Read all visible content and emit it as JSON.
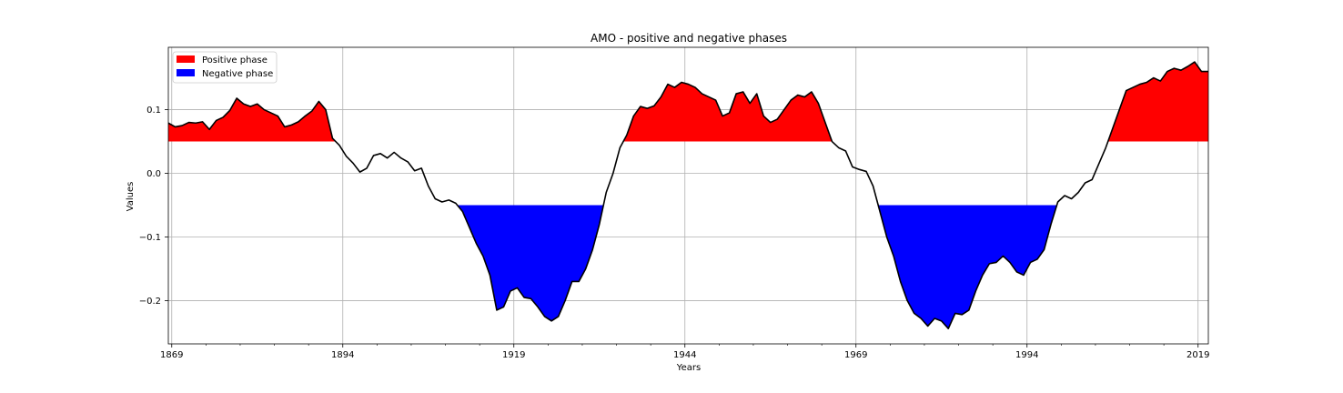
{
  "chart_data": {
    "type": "area",
    "title": "AMO - positive and negative phases",
    "xlabel": "Years",
    "ylabel": "Values",
    "xlim": [
      1868.5,
      2020.5
    ],
    "ylim": [
      -0.268,
      0.198
    ],
    "xticks": [
      1869,
      1894,
      1919,
      1944,
      1969,
      1994,
      2019
    ],
    "yticks": [
      -0.2,
      -0.1,
      0.0,
      0.1
    ],
    "ytick_labels": [
      "−0.2",
      "−0.1",
      "0.0",
      "0.1"
    ],
    "grid": true,
    "legend_position": "top-left",
    "positive_threshold": 0.05,
    "negative_threshold": -0.05,
    "series": [
      {
        "name": "Positive phase",
        "color": "#ff0000"
      },
      {
        "name": "Negative phase",
        "color": "#0000ff"
      }
    ],
    "line_color": "#000000",
    "points": [
      [
        1868.5,
        0.079
      ],
      [
        1869.5,
        0.073
      ],
      [
        1870.5,
        0.075
      ],
      [
        1871.5,
        0.08
      ],
      [
        1872.5,
        0.079
      ],
      [
        1873.5,
        0.081
      ],
      [
        1874.5,
        0.069
      ],
      [
        1875.5,
        0.083
      ],
      [
        1876.5,
        0.088
      ],
      [
        1877.5,
        0.099
      ],
      [
        1878.5,
        0.118
      ],
      [
        1879.5,
        0.109
      ],
      [
        1880.5,
        0.105
      ],
      [
        1881.5,
        0.109
      ],
      [
        1882.5,
        0.1
      ],
      [
        1883.5,
        0.095
      ],
      [
        1884.5,
        0.09
      ],
      [
        1885.5,
        0.073
      ],
      [
        1886.5,
        0.076
      ],
      [
        1887.5,
        0.081
      ],
      [
        1888.5,
        0.09
      ],
      [
        1889.5,
        0.098
      ],
      [
        1890.5,
        0.113
      ],
      [
        1891.5,
        0.1
      ],
      [
        1892.5,
        0.055
      ],
      [
        1893.5,
        0.044
      ],
      [
        1894.5,
        0.027
      ],
      [
        1895.5,
        0.016
      ],
      [
        1896.5,
        0.002
      ],
      [
        1897.5,
        0.008
      ],
      [
        1898.5,
        0.028
      ],
      [
        1899.5,
        0.031
      ],
      [
        1900.5,
        0.024
      ],
      [
        1901.5,
        0.033
      ],
      [
        1902.5,
        0.024
      ],
      [
        1903.5,
        0.018
      ],
      [
        1904.5,
        0.004
      ],
      [
        1905.5,
        0.008
      ],
      [
        1906.5,
        -0.02
      ],
      [
        1907.5,
        -0.04
      ],
      [
        1908.5,
        -0.045
      ],
      [
        1909.5,
        -0.042
      ],
      [
        1910.5,
        -0.047
      ],
      [
        1911.5,
        -0.06
      ],
      [
        1912.5,
        -0.085
      ],
      [
        1913.5,
        -0.11
      ],
      [
        1914.5,
        -0.13
      ],
      [
        1915.5,
        -0.16
      ],
      [
        1916.5,
        -0.215
      ],
      [
        1917.5,
        -0.21
      ],
      [
        1918.5,
        -0.185
      ],
      [
        1919.5,
        -0.18
      ],
      [
        1920.5,
        -0.195
      ],
      [
        1921.5,
        -0.197
      ],
      [
        1922.5,
        -0.21
      ],
      [
        1923.5,
        -0.225
      ],
      [
        1924.5,
        -0.232
      ],
      [
        1925.5,
        -0.225
      ],
      [
        1926.5,
        -0.2
      ],
      [
        1927.5,
        -0.17
      ],
      [
        1928.5,
        -0.17
      ],
      [
        1929.5,
        -0.15
      ],
      [
        1930.5,
        -0.12
      ],
      [
        1931.5,
        -0.08
      ],
      [
        1932.5,
        -0.03
      ],
      [
        1933.5,
        0.0
      ],
      [
        1934.5,
        0.04
      ],
      [
        1935.5,
        0.06
      ],
      [
        1936.5,
        0.09
      ],
      [
        1937.5,
        0.105
      ],
      [
        1938.5,
        0.102
      ],
      [
        1939.5,
        0.106
      ],
      [
        1940.5,
        0.12
      ],
      [
        1941.5,
        0.14
      ],
      [
        1942.5,
        0.135
      ],
      [
        1943.5,
        0.143
      ],
      [
        1944.5,
        0.14
      ],
      [
        1945.5,
        0.135
      ],
      [
        1946.5,
        0.125
      ],
      [
        1947.5,
        0.12
      ],
      [
        1948.5,
        0.115
      ],
      [
        1949.5,
        0.09
      ],
      [
        1950.5,
        0.095
      ],
      [
        1951.5,
        0.125
      ],
      [
        1952.5,
        0.128
      ],
      [
        1953.5,
        0.11
      ],
      [
        1954.5,
        0.125
      ],
      [
        1955.5,
        0.09
      ],
      [
        1956.5,
        0.08
      ],
      [
        1957.5,
        0.085
      ],
      [
        1958.5,
        0.1
      ],
      [
        1959.5,
        0.115
      ],
      [
        1960.5,
        0.123
      ],
      [
        1961.5,
        0.12
      ],
      [
        1962.5,
        0.128
      ],
      [
        1963.5,
        0.11
      ],
      [
        1964.5,
        0.08
      ],
      [
        1965.5,
        0.05
      ],
      [
        1966.5,
        0.04
      ],
      [
        1967.5,
        0.035
      ],
      [
        1968.5,
        0.01
      ],
      [
        1969.5,
        0.006
      ],
      [
        1970.5,
        0.003
      ],
      [
        1971.5,
        -0.02
      ],
      [
        1972.5,
        -0.06
      ],
      [
        1973.5,
        -0.1
      ],
      [
        1974.5,
        -0.13
      ],
      [
        1975.5,
        -0.17
      ],
      [
        1976.5,
        -0.2
      ],
      [
        1977.5,
        -0.22
      ],
      [
        1978.5,
        -0.228
      ],
      [
        1979.5,
        -0.24
      ],
      [
        1980.5,
        -0.228
      ],
      [
        1981.5,
        -0.232
      ],
      [
        1982.5,
        -0.244
      ],
      [
        1983.5,
        -0.22
      ],
      [
        1984.5,
        -0.222
      ],
      [
        1985.5,
        -0.215
      ],
      [
        1986.5,
        -0.185
      ],
      [
        1987.5,
        -0.16
      ],
      [
        1988.5,
        -0.142
      ],
      [
        1989.5,
        -0.14
      ],
      [
        1990.5,
        -0.13
      ],
      [
        1991.5,
        -0.14
      ],
      [
        1992.5,
        -0.155
      ],
      [
        1993.5,
        -0.16
      ],
      [
        1994.5,
        -0.14
      ],
      [
        1995.5,
        -0.135
      ],
      [
        1996.5,
        -0.12
      ],
      [
        1997.5,
        -0.08
      ],
      [
        1998.5,
        -0.045
      ],
      [
        1999.5,
        -0.035
      ],
      [
        2000.5,
        -0.04
      ],
      [
        2001.5,
        -0.03
      ],
      [
        2002.5,
        -0.015
      ],
      [
        2003.5,
        -0.01
      ],
      [
        2004.5,
        0.015
      ],
      [
        2005.5,
        0.04
      ],
      [
        2006.5,
        0.07
      ],
      [
        2007.5,
        0.1
      ],
      [
        2008.5,
        0.13
      ],
      [
        2009.5,
        0.135
      ],
      [
        2010.5,
        0.14
      ],
      [
        2011.5,
        0.143
      ],
      [
        2012.5,
        0.15
      ],
      [
        2013.5,
        0.145
      ],
      [
        2014.5,
        0.16
      ],
      [
        2015.5,
        0.165
      ],
      [
        2016.5,
        0.162
      ],
      [
        2017.5,
        0.168
      ],
      [
        2018.5,
        0.175
      ],
      [
        2019.5,
        0.16
      ],
      [
        2020.5,
        0.16
      ]
    ]
  }
}
